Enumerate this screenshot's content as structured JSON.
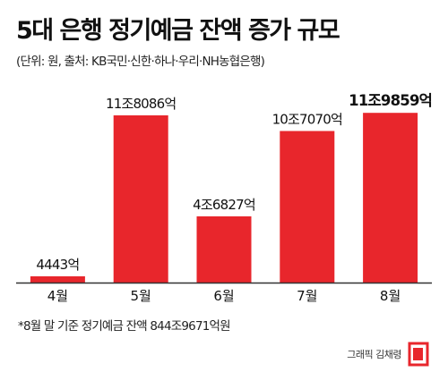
{
  "header": {
    "title": "5대 은행 정기예금 잔액 증가 규모",
    "subtitle": "(단위: 원, 출처: KB국민·신한·하나·우리·NH농협은행)"
  },
  "chart_data": {
    "type": "bar",
    "title": "5대 은행 정기예금 잔액 증가 규모",
    "subtitle": "(단위: 원, 출처: KB국민·신한·하나·우리·NH농협은행)",
    "xlabel": "",
    "ylabel": "",
    "unit": "원",
    "categories": [
      "4월",
      "5월",
      "6월",
      "7월",
      "8월"
    ],
    "values": [
      444300000000,
      11808600000000,
      4682700000000,
      10707000000000,
      11985900000000
    ],
    "value_labels": [
      "4443억",
      "11조8086억",
      "4조6827억",
      "10조7070억",
      "11조9859억"
    ],
    "highlight_index": 4,
    "ylim": [
      0,
      12000000000000
    ],
    "grid": false,
    "legend": "none",
    "bar_color": "#e8262c",
    "axis_color": "#333333"
  },
  "footer": {
    "note": "*8월 말 기준 정기예금 잔액 844조9671억원",
    "credit": "그래픽 김채령",
    "logo_icon": "asiae-logo-icon",
    "logo_color": "#e8262c"
  }
}
